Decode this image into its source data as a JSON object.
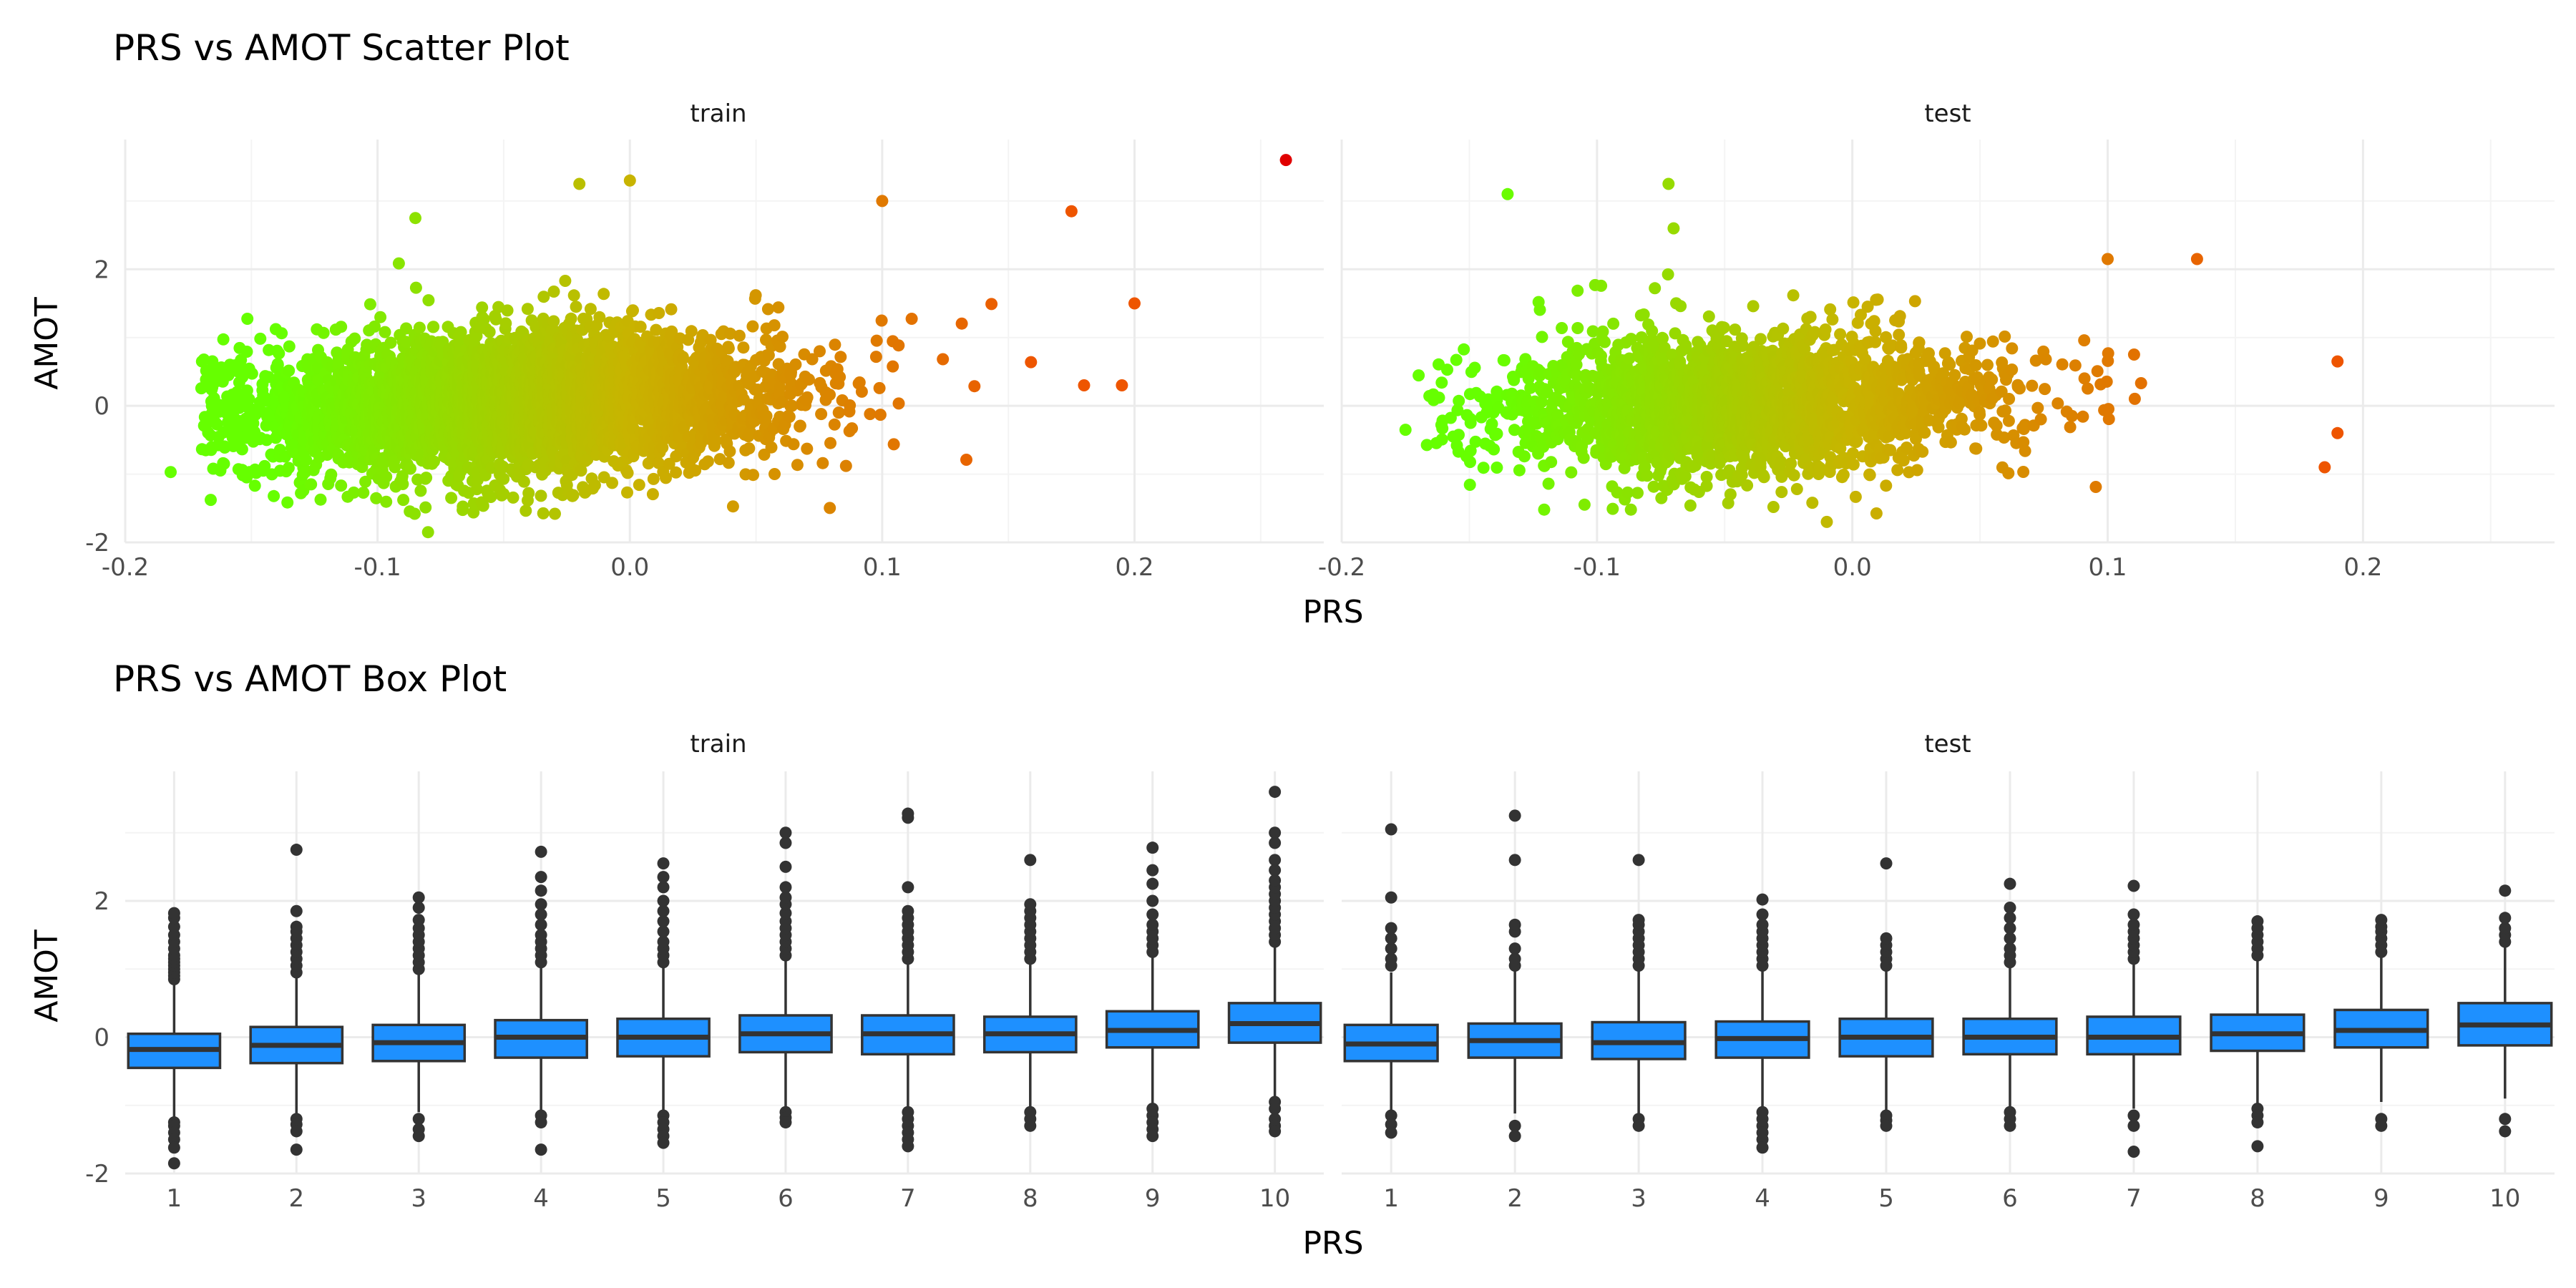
{
  "colors": {
    "low": "#66ff00",
    "mid": "#c8b400",
    "high": "#ee5500",
    "extreme": "#e00000",
    "box_fill": "#1e90ff",
    "box_stroke": "#333333",
    "outlier": "#333333",
    "grid": "#ebebeb"
  },
  "chart_data": [
    {
      "type": "scatter",
      "title": "PRS vs AMOT Scatter Plot",
      "xlabel": "PRS",
      "ylabel": "AMOT",
      "xlim": [
        -0.2,
        0.275
      ],
      "ylim": [
        -2,
        3.9
      ],
      "x_ticks": [
        "-0.2",
        "-0.1",
        "0.0",
        "0.1",
        "0.2"
      ],
      "y_ticks": [
        "-2",
        "0",
        "2"
      ],
      "x_tick_values": [
        -0.2,
        -0.1,
        0.0,
        0.1,
        0.2
      ],
      "y_tick_values": [
        -2,
        0,
        2
      ],
      "color_by": "PRS",
      "panels": [
        {
          "name": "train",
          "cloud": {
            "n": 4200,
            "x_mean": -0.045,
            "x_sd": 0.052,
            "y_mean": 0.05,
            "y_sd": 0.5,
            "slope": 1.7
          },
          "notable_points": [
            {
              "x": 0.26,
              "y": 3.6
            },
            {
              "x": -0.182,
              "y": -0.97
            },
            {
              "x": 0.0,
              "y": 3.3
            },
            {
              "x": -0.02,
              "y": 3.25
            },
            {
              "x": 0.1,
              "y": 3.0
            },
            {
              "x": -0.085,
              "y": 2.75
            },
            {
              "x": 0.175,
              "y": 2.85
            },
            {
              "x": 0.2,
              "y": 1.5
            },
            {
              "x": -0.08,
              "y": -1.85
            },
            {
              "x": 0.18,
              "y": 0.3
            },
            {
              "x": 0.195,
              "y": 0.3
            }
          ]
        },
        {
          "name": "test",
          "cloud": {
            "n": 2300,
            "x_mean": -0.04,
            "x_sd": 0.05,
            "y_mean": 0.05,
            "y_sd": 0.5,
            "slope": 1.6
          },
          "notable_points": [
            {
              "x": -0.072,
              "y": 3.25
            },
            {
              "x": -0.135,
              "y": 3.1
            },
            {
              "x": -0.175,
              "y": -0.35
            },
            {
              "x": -0.07,
              "y": 2.6
            },
            {
              "x": 0.135,
              "y": 2.15
            },
            {
              "x": 0.19,
              "y": 0.65
            },
            {
              "x": 0.19,
              "y": -0.4
            },
            {
              "x": 0.185,
              "y": -0.9
            },
            {
              "x": -0.01,
              "y": -1.7
            },
            {
              "x": 0.1,
              "y": 2.15
            }
          ]
        }
      ]
    },
    {
      "type": "box",
      "title": "PRS vs AMOT Box Plot",
      "xlabel": "PRS",
      "ylabel": "AMOT",
      "categories": [
        "1",
        "2",
        "3",
        "4",
        "5",
        "6",
        "7",
        "8",
        "9",
        "10"
      ],
      "ylim": [
        -2,
        3.9
      ],
      "y_ticks": [
        "-2",
        "0",
        "2"
      ],
      "y_tick_values": [
        -2,
        0,
        2
      ],
      "panels": [
        {
          "name": "train",
          "boxes": [
            {
              "q1": -0.45,
              "median": -0.18,
              "q3": 0.05,
              "whisker_low": -1.2,
              "whisker_high": 0.8,
              "outliers_high": [
                0.85,
                0.9,
                0.95,
                1.0,
                1.05,
                1.1,
                1.15,
                1.2,
                1.3,
                1.4,
                1.5,
                1.62,
                1.75,
                1.82
              ],
              "outliers_low": [
                -1.25,
                -1.3,
                -1.4,
                -1.5,
                -1.62,
                -1.85
              ]
            },
            {
              "q1": -0.38,
              "median": -0.12,
              "q3": 0.15,
              "whisker_low": -1.15,
              "whisker_high": 0.9,
              "outliers_high": [
                0.95,
                1.05,
                1.15,
                1.25,
                1.35,
                1.45,
                1.55,
                1.62,
                1.85,
                2.75
              ],
              "outliers_low": [
                -1.2,
                -1.28,
                -1.38,
                -1.65
              ]
            },
            {
              "q1": -0.35,
              "median": -0.08,
              "q3": 0.18,
              "whisker_low": -1.1,
              "whisker_high": 0.95,
              "outliers_high": [
                1.0,
                1.1,
                1.2,
                1.3,
                1.4,
                1.5,
                1.6,
                1.72,
                1.9,
                2.05
              ],
              "outliers_low": [
                -1.2,
                -1.35,
                -1.45
              ]
            },
            {
              "q1": -0.3,
              "median": 0.0,
              "q3": 0.25,
              "whisker_low": -1.1,
              "whisker_high": 1.05,
              "outliers_high": [
                1.1,
                1.2,
                1.3,
                1.4,
                1.5,
                1.65,
                1.8,
                1.95,
                2.15,
                2.35,
                2.72
              ],
              "outliers_low": [
                -1.15,
                -1.25,
                -1.65
              ]
            },
            {
              "q1": -0.28,
              "median": 0.0,
              "q3": 0.27,
              "whisker_low": -1.1,
              "whisker_high": 1.05,
              "outliers_high": [
                1.1,
                1.2,
                1.3,
                1.4,
                1.55,
                1.7,
                1.85,
                2.0,
                2.2,
                2.35,
                2.55
              ],
              "outliers_low": [
                -1.15,
                -1.25,
                -1.35,
                -1.45,
                -1.55
              ]
            },
            {
              "q1": -0.22,
              "median": 0.05,
              "q3": 0.32,
              "whisker_low": -1.05,
              "whisker_high": 1.12,
              "outliers_high": [
                1.2,
                1.3,
                1.4,
                1.5,
                1.6,
                1.7,
                1.82,
                1.95,
                2.05,
                2.2,
                2.5,
                2.85,
                3.0
              ],
              "outliers_low": [
                -1.1,
                -1.18,
                -1.25
              ]
            },
            {
              "q1": -0.25,
              "median": 0.05,
              "q3": 0.32,
              "whisker_low": -1.05,
              "whisker_high": 1.1,
              "outliers_high": [
                1.15,
                1.25,
                1.35,
                1.45,
                1.55,
                1.65,
                1.75,
                1.85,
                2.2,
                3.22,
                3.28
              ],
              "outliers_low": [
                -1.1,
                -1.2,
                -1.3,
                -1.4,
                -1.5,
                -1.6
              ]
            },
            {
              "q1": -0.22,
              "median": 0.05,
              "q3": 0.3,
              "whisker_low": -1.05,
              "whisker_high": 1.1,
              "outliers_high": [
                1.15,
                1.25,
                1.35,
                1.45,
                1.55,
                1.65,
                1.75,
                1.85,
                1.95,
                2.6
              ],
              "outliers_low": [
                -1.1,
                -1.2,
                -1.3
              ]
            },
            {
              "q1": -0.15,
              "median": 0.1,
              "q3": 0.38,
              "whisker_low": -0.98,
              "whisker_high": 1.2,
              "outliers_high": [
                1.25,
                1.35,
                1.45,
                1.55,
                1.65,
                1.8,
                2.0,
                2.25,
                2.45,
                2.78
              ],
              "outliers_low": [
                -1.05,
                -1.15,
                -1.25,
                -1.35,
                -1.45
              ]
            },
            {
              "q1": -0.08,
              "median": 0.2,
              "q3": 0.5,
              "whisker_low": -0.9,
              "whisker_high": 1.35,
              "outliers_high": [
                1.4,
                1.5,
                1.6,
                1.7,
                1.8,
                1.9,
                2.0,
                2.1,
                2.2,
                2.3,
                2.45,
                2.6,
                2.85,
                3.0,
                3.6
              ],
              "outliers_low": [
                -0.95,
                -1.05,
                -1.2,
                -1.3,
                -1.38
              ]
            }
          ]
        },
        {
          "name": "test",
          "boxes": [
            {
              "q1": -0.35,
              "median": -0.1,
              "q3": 0.18,
              "whisker_low": -1.1,
              "whisker_high": 0.95,
              "outliers_high": [
                1.05,
                1.15,
                1.3,
                1.45,
                1.6,
                2.05,
                3.05
              ],
              "outliers_low": [
                -1.15,
                -1.28,
                -1.4
              ]
            },
            {
              "q1": -0.3,
              "median": -0.05,
              "q3": 0.2,
              "whisker_low": -1.12,
              "whisker_high": 1.0,
              "outliers_high": [
                1.05,
                1.15,
                1.3,
                1.55,
                1.65,
                2.6,
                3.25
              ],
              "outliers_low": [
                -1.3,
                -1.45
              ]
            },
            {
              "q1": -0.32,
              "median": -0.08,
              "q3": 0.22,
              "whisker_low": -1.15,
              "whisker_high": 1.0,
              "outliers_high": [
                1.05,
                1.15,
                1.25,
                1.35,
                1.45,
                1.55,
                1.65,
                1.72,
                2.6
              ],
              "outliers_low": [
                -1.2,
                -1.3
              ]
            },
            {
              "q1": -0.3,
              "median": -0.02,
              "q3": 0.23,
              "whisker_low": -1.05,
              "whisker_high": 1.0,
              "outliers_high": [
                1.05,
                1.15,
                1.25,
                1.35,
                1.45,
                1.55,
                1.65,
                1.8,
                2.02
              ],
              "outliers_low": [
                -1.1,
                -1.2,
                -1.3,
                -1.4,
                -1.5,
                -1.62
              ]
            },
            {
              "q1": -0.28,
              "median": 0.0,
              "q3": 0.27,
              "whisker_low": -1.1,
              "whisker_high": 1.0,
              "outliers_high": [
                1.05,
                1.15,
                1.25,
                1.35,
                1.45,
                2.55
              ],
              "outliers_low": [
                -1.15,
                -1.22,
                -1.3
              ]
            },
            {
              "q1": -0.25,
              "median": 0.0,
              "q3": 0.27,
              "whisker_low": -1.05,
              "whisker_high": 1.05,
              "outliers_high": [
                1.1,
                1.2,
                1.3,
                1.45,
                1.6,
                1.75,
                1.9,
                2.25
              ],
              "outliers_low": [
                -1.1,
                -1.2,
                -1.3
              ]
            },
            {
              "q1": -0.25,
              "median": 0.0,
              "q3": 0.3,
              "whisker_low": -1.05,
              "whisker_high": 1.1,
              "outliers_high": [
                1.15,
                1.25,
                1.35,
                1.45,
                1.55,
                1.65,
                1.8,
                2.22
              ],
              "outliers_low": [
                -1.15,
                -1.3,
                -1.68
              ]
            },
            {
              "q1": -0.2,
              "median": 0.05,
              "q3": 0.33,
              "whisker_low": -1.0,
              "whisker_high": 1.12,
              "outliers_high": [
                1.2,
                1.3,
                1.4,
                1.5,
                1.6,
                1.7
              ],
              "outliers_low": [
                -1.05,
                -1.15,
                -1.25,
                -1.6
              ]
            },
            {
              "q1": -0.15,
              "median": 0.1,
              "q3": 0.4,
              "whisker_low": -0.95,
              "whisker_high": 1.2,
              "outliers_high": [
                1.25,
                1.35,
                1.45,
                1.55,
                1.62,
                1.72
              ],
              "outliers_low": [
                -1.2,
                -1.3
              ]
            },
            {
              "q1": -0.12,
              "median": 0.18,
              "q3": 0.5,
              "whisker_low": -0.9,
              "whisker_high": 1.35,
              "outliers_high": [
                1.4,
                1.5,
                1.6,
                1.75,
                2.15
              ],
              "outliers_low": [
                -1.2,
                -1.38
              ]
            }
          ]
        }
      ]
    }
  ]
}
